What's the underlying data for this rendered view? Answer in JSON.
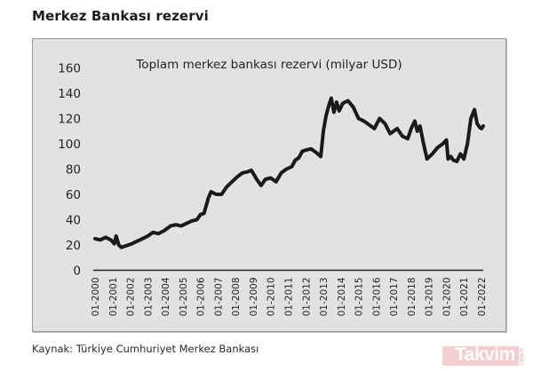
{
  "header": {
    "title": "Merkez Bankası rezervi"
  },
  "footer": {
    "source": "Kaynak: Türkiye Cumhuriyet Merkez Bankası",
    "logo": "Takvim",
    "logo_tld": ".com.tr"
  },
  "colors": {
    "panel_bg": "#e1e2e4",
    "line": "#1a1a1a",
    "logo": "#e8a0a5"
  },
  "chart_data": {
    "type": "line",
    "title": "Toplam merkez bankası rezervi (milyar USD)",
    "xlabel": "",
    "ylabel": "",
    "ylim": [
      0,
      160
    ],
    "yticks": [
      0,
      20,
      40,
      60,
      80,
      100,
      120,
      140,
      160
    ],
    "grid": false,
    "legend": "none",
    "categories": [
      "01-2000",
      "01-2001",
      "01-2002",
      "01-2003",
      "01-2004",
      "01-2005",
      "01-2006",
      "01-2007",
      "01-2008",
      "01-2009",
      "01-2010",
      "01-2011",
      "01-2012",
      "01-2013",
      "01-2014",
      "01-2015",
      "01-2016",
      "01-2017",
      "01-2018",
      "01-2019",
      "01-2020",
      "01-2021",
      "01-2022"
    ],
    "series": [
      {
        "name": "Toplam merkez bankası rezervi",
        "x": [
          2000.0,
          2000.3,
          2000.6,
          2000.9,
          2001.1,
          2001.2,
          2001.35,
          2001.5,
          2001.7,
          2001.9,
          2002.1,
          2002.4,
          2002.7,
          2003.0,
          2003.3,
          2003.6,
          2003.9,
          2004.1,
          2004.3,
          2004.6,
          2004.9,
          2005.2,
          2005.5,
          2005.8,
          2006.0,
          2006.2,
          2006.45,
          2006.6,
          2006.9,
          2007.2,
          2007.5,
          2007.8,
          2008.1,
          2008.4,
          2008.7,
          2008.9,
          2009.2,
          2009.45,
          2009.7,
          2010.0,
          2010.3,
          2010.6,
          2010.9,
          2011.2,
          2011.4,
          2011.6,
          2011.8,
          2012.0,
          2012.3,
          2012.6,
          2012.85,
          2013.0,
          2013.15,
          2013.3,
          2013.45,
          2013.6,
          2013.75,
          2013.9,
          2014.1,
          2014.4,
          2014.7,
          2015.0,
          2015.3,
          2015.6,
          2015.9,
          2016.2,
          2016.5,
          2016.8,
          2017.0,
          2017.2,
          2017.5,
          2017.8,
          2018.0,
          2018.2,
          2018.35,
          2018.5,
          2018.7,
          2018.9,
          2019.2,
          2019.5,
          2019.8,
          2020.0,
          2020.1,
          2020.25,
          2020.4,
          2020.6,
          2020.8,
          2021.0,
          2021.2,
          2021.4,
          2021.6,
          2021.75,
          2021.9,
          2022.0,
          2022.1
        ],
        "values": [
          25,
          24,
          26,
          24,
          21,
          27,
          20,
          18,
          19,
          20,
          21,
          23,
          25,
          27,
          30,
          29,
          31,
          33,
          35,
          36,
          35,
          37,
          39,
          40,
          44,
          45,
          57,
          62,
          60,
          60,
          66,
          70,
          74,
          77,
          78,
          79,
          72,
          67,
          72,
          73,
          70,
          77,
          80,
          82,
          87,
          89,
          94,
          95,
          96,
          93,
          90,
          110,
          122,
          130,
          136,
          125,
          133,
          126,
          132,
          134,
          129,
          120,
          118,
          115,
          112,
          120,
          116,
          108,
          110,
          112,
          106,
          104,
          112,
          118,
          110,
          114,
          100,
          88,
          92,
          97,
          100,
          103,
          88,
          90,
          87,
          86,
          92,
          88,
          100,
          120,
          127,
          116,
          113,
          112,
          114
        ]
      }
    ]
  }
}
